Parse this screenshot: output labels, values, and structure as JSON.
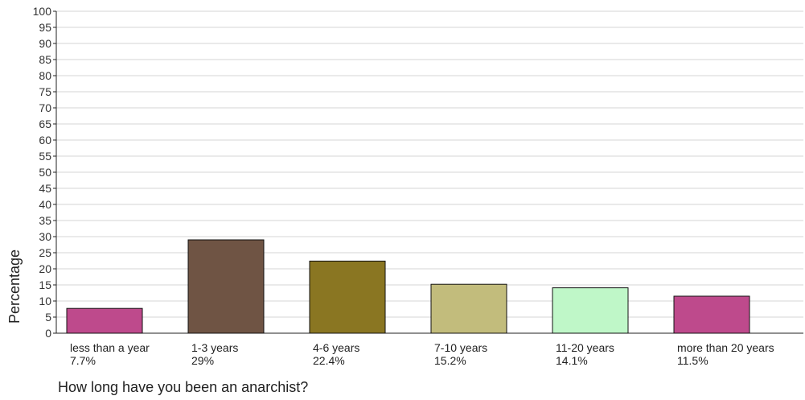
{
  "chart_data": {
    "type": "bar",
    "categories": [
      "less than a year",
      "1-3 years",
      "4-6 years",
      "7-10 years",
      "11-20 years",
      "more than 20 years"
    ],
    "values": [
      7.7,
      29,
      22.4,
      15.2,
      14.1,
      11.5
    ],
    "value_labels": [
      "7.7%",
      "29%",
      "22.4%",
      "15.2%",
      "14.1%",
      "11.5%"
    ],
    "colors": [
      "#be4a8c",
      "#6f5444",
      "#8a7622",
      "#c2bc7c",
      "#bff7c8",
      "#be4a8c"
    ],
    "title": "",
    "xlabel": "How long have you been an anarchist?",
    "ylabel": "Percentage",
    "ylim": [
      0,
      100
    ],
    "ytick_step": 5,
    "grid": true,
    "gridline_color": "#d4d4d4",
    "bar_edge_color": "#111111"
  }
}
